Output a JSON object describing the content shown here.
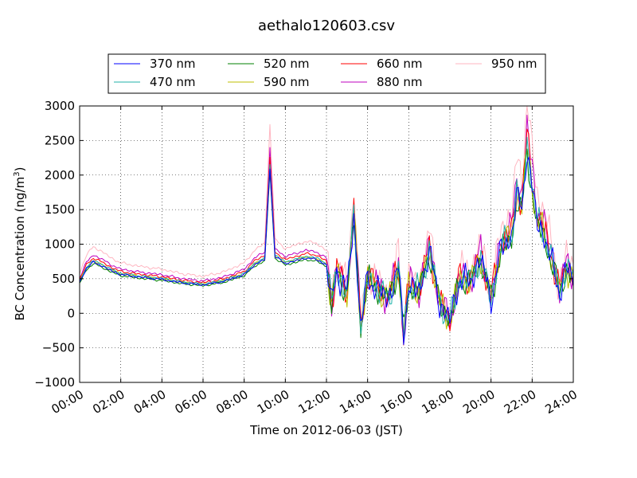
{
  "chart_data": {
    "type": "line",
    "title": "aethalo120603.csv",
    "xlabel": "Time on 2012-06-03 (JST)",
    "ylabel": "BC Concentration (ng/m",
    "ylabel_sup": "3",
    "ylabel_close": ")",
    "xlim": [
      "00:00",
      "24:00"
    ],
    "ylim": [
      -1000,
      3000
    ],
    "x_ticks": [
      "00:00",
      "02:00",
      "04:00",
      "06:00",
      "08:00",
      "10:00",
      "12:00",
      "14:00",
      "16:00",
      "18:00",
      "20:00",
      "22:00",
      "24:00"
    ],
    "y_ticks": [
      "−1000",
      "−500",
      "0",
      "500",
      "1000",
      "1500",
      "2000",
      "2500",
      "3000"
    ],
    "y_tick_values": [
      -1000,
      -500,
      0,
      500,
      1000,
      1500,
      2000,
      2500,
      3000
    ],
    "grid": true,
    "legend_position": "top",
    "series": [
      {
        "name": "370 nm",
        "color": "#0000ff",
        "scale": 1.0
      },
      {
        "name": "470 nm",
        "color": "#20b2aa",
        "scale": 1.03
      },
      {
        "name": "520 nm",
        "color": "#008000",
        "scale": 0.97
      },
      {
        "name": "590 nm",
        "color": "#bfbf00",
        "scale": 1.02
      },
      {
        "name": "660 nm",
        "color": "#ff0000",
        "scale": 1.08
      },
      {
        "name": "880 nm",
        "color": "#bf00bf",
        "scale": 1.14
      },
      {
        "name": "950 nm",
        "color": "#ffb6c1",
        "scale": 1.3
      }
    ],
    "base_profile": [
      [
        "00:00",
        450
      ],
      [
        "00:20",
        650
      ],
      [
        "00:40",
        740
      ],
      [
        "01:00",
        700
      ],
      [
        "01:30",
        620
      ],
      [
        "02:00",
        560
      ],
      [
        "03:00",
        520
      ],
      [
        "04:00",
        490
      ],
      [
        "05:00",
        440
      ],
      [
        "06:00",
        410
      ],
      [
        "07:00",
        460
      ],
      [
        "08:00",
        560
      ],
      [
        "08:30",
        700
      ],
      [
        "09:00",
        780
      ],
      [
        "09:15",
        2100
      ],
      [
        "09:30",
        820
      ],
      [
        "10:00",
        720
      ],
      [
        "10:30",
        760
      ],
      [
        "11:00",
        800
      ],
      [
        "11:30",
        780
      ],
      [
        "12:00",
        700
      ],
      [
        "12:15",
        150
      ],
      [
        "12:30",
        600
      ],
      [
        "13:00",
        300
      ],
      [
        "13:20",
        1400
      ],
      [
        "13:40",
        -200
      ],
      [
        "14:00",
        500
      ],
      [
        "14:30",
        350
      ],
      [
        "15:00",
        200
      ],
      [
        "15:30",
        650
      ],
      [
        "15:45",
        -300
      ],
      [
        "16:00",
        400
      ],
      [
        "16:30",
        300
      ],
      [
        "17:00",
        900
      ],
      [
        "17:30",
        150
      ],
      [
        "18:00",
        -100
      ],
      [
        "18:30",
        500
      ],
      [
        "19:00",
        450
      ],
      [
        "19:30",
        800
      ],
      [
        "20:00",
        200
      ],
      [
        "20:30",
        950
      ],
      [
        "21:00",
        1100
      ],
      [
        "21:15",
        1700
      ],
      [
        "21:30",
        1500
      ],
      [
        "21:45",
        2400
      ],
      [
        "22:00",
        1800
      ],
      [
        "22:15",
        1300
      ],
      [
        "22:30",
        1200
      ],
      [
        "23:00",
        700
      ],
      [
        "23:20",
        300
      ],
      [
        "23:40",
        650
      ],
      [
        "24:00",
        500
      ]
    ]
  }
}
